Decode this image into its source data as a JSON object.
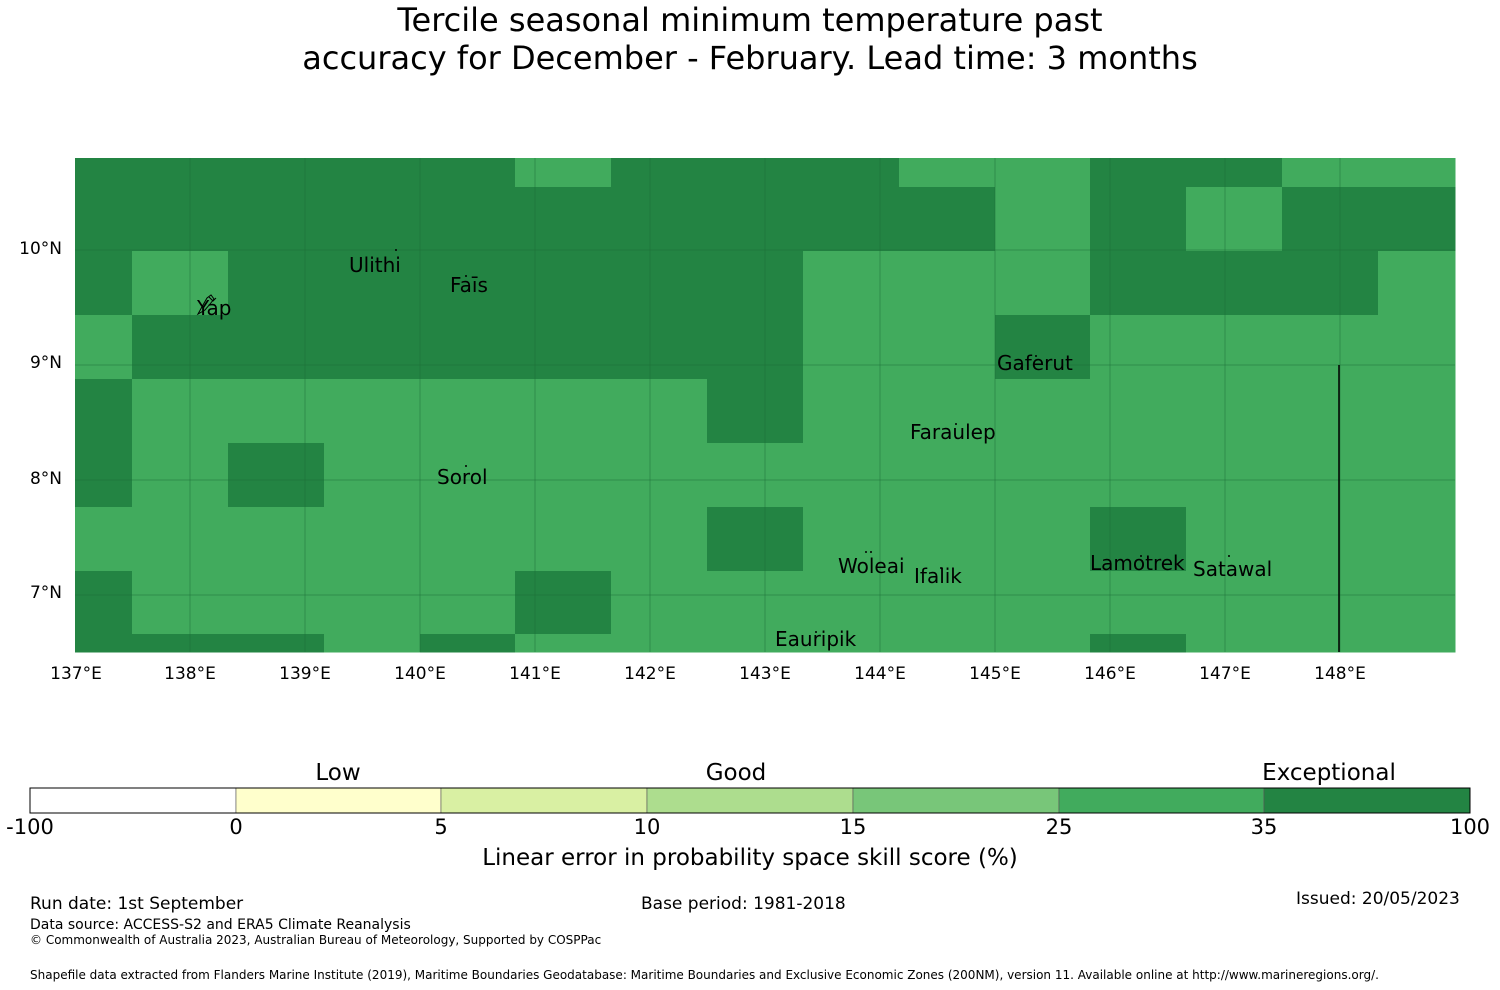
{
  "title": {
    "line1": "Tercile seasonal minimum temperature past",
    "line2": "accuracy for December - February. Lead time: 3 months"
  },
  "map": {
    "lon_range": [
      137,
      149
    ],
    "lat_range": [
      6.5,
      10.8
    ],
    "lat_labels": [
      "10°N",
      "9°N",
      "8°N",
      "7°N"
    ],
    "lon_labels": [
      "137°E",
      "138°E",
      "139°E",
      "140°E",
      "141°E",
      "142°E",
      "143°E",
      "144°E",
      "145°E",
      "146°E",
      "147°E",
      "148°E"
    ],
    "colors": {
      "exceptional": "#238443",
      "good": "#41ab5d"
    },
    "places": [
      "Ulithi",
      "Faīs",
      "Yap",
      "Gaferut",
      "Faraulep",
      "Sorol",
      "Woleai",
      "Ifalik",
      "Lamotrek",
      "Satawal",
      "Eauripik"
    ]
  },
  "colorbar": {
    "categories": [
      "Low",
      "Good",
      "Exceptional"
    ],
    "ticks": [
      "-100",
      "0",
      "5",
      "10",
      "15",
      "25",
      "35",
      "100"
    ],
    "colors": [
      "#ffffff",
      "#ffffcc",
      "#d9f0a3",
      "#addd8e",
      "#78c679",
      "#41ab5d",
      "#238443"
    ],
    "title": "Linear error in probability space skill score (%)"
  },
  "footer": {
    "run_date": "Run date: 1st September",
    "base_period": "Base period: 1981-2018",
    "issued": "Issued: 20/05/2023",
    "data_source": "Data source: ACCESS-S2 and ERA5 Climate Reanalysis",
    "copyright": "© Commonwealth of Australia 2023, Australian Bureau of Meteorology, Supported by COSPPac",
    "shapefile": "Shapefile data extracted from Flanders Marine Institute (2019), Maritime Boundaries Geodatabase: Maritime Boundaries and Exclusive Economic Zones (200NM), version 11. Available online at http://www.marineregions.org/."
  }
}
